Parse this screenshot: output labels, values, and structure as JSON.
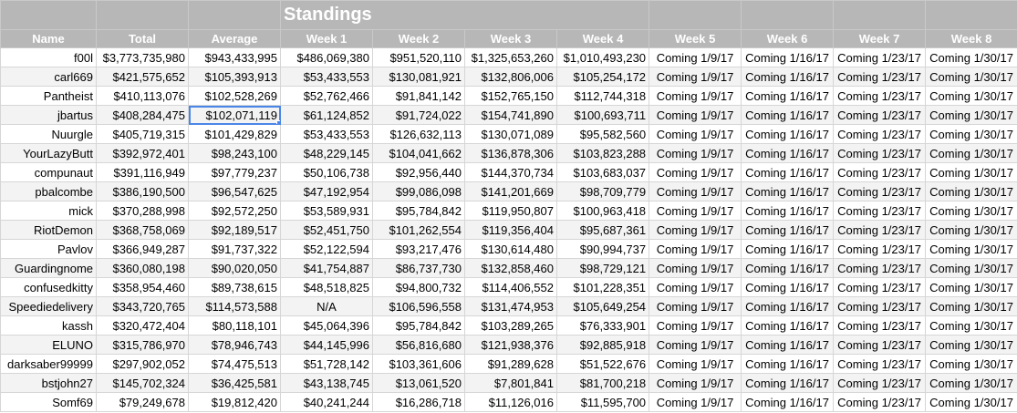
{
  "sheet": {
    "title": "Standings",
    "columns": [
      "Name",
      "Total",
      "Average",
      "Week 1",
      "Week 2",
      "Week 3",
      "Week 4",
      "Week 5",
      "Week 6",
      "Week 7",
      "Week 8"
    ],
    "selected_cell": {
      "row": 3,
      "column": "Average"
    },
    "colors": {
      "header_bg": "#b7b7b7",
      "header_text": "#ffffff",
      "selection": "#4a86e8",
      "stripe": "#f3f3f3"
    },
    "rows": [
      [
        "f00l",
        "$3,773,735,980",
        "$943,433,995",
        "$486,069,380",
        "$951,520,110",
        "$1,325,653,260",
        "$1,010,493,230",
        "Coming 1/9/17",
        "Coming 1/16/17",
        "Coming 1/23/17",
        "Coming 1/30/17"
      ],
      [
        "carl669",
        "$421,575,652",
        "$105,393,913",
        "$53,433,553",
        "$130,081,921",
        "$132,806,006",
        "$105,254,172",
        "Coming 1/9/17",
        "Coming 1/16/17",
        "Coming 1/23/17",
        "Coming 1/30/17"
      ],
      [
        "Pantheist",
        "$410,113,076",
        "$102,528,269",
        "$52,762,466",
        "$91,841,142",
        "$152,765,150",
        "$112,744,318",
        "Coming 1/9/17",
        "Coming 1/16/17",
        "Coming 1/23/17",
        "Coming 1/30/17"
      ],
      [
        "jbartus",
        "$408,284,475",
        "$102,071,119",
        "$61,124,852",
        "$91,724,022",
        "$154,741,890",
        "$100,693,711",
        "Coming 1/9/17",
        "Coming 1/16/17",
        "Coming 1/23/17",
        "Coming 1/30/17"
      ],
      [
        "Nuurgle",
        "$405,719,315",
        "$101,429,829",
        "$53,433,553",
        "$126,632,113",
        "$130,071,089",
        "$95,582,560",
        "Coming 1/9/17",
        "Coming 1/16/17",
        "Coming 1/23/17",
        "Coming 1/30/17"
      ],
      [
        "YourLazyButt",
        "$392,972,401",
        "$98,243,100",
        "$48,229,145",
        "$104,041,662",
        "$136,878,306",
        "$103,823,288",
        "Coming 1/9/17",
        "Coming 1/16/17",
        "Coming 1/23/17",
        "Coming 1/30/17"
      ],
      [
        "compunaut",
        "$391,116,949",
        "$97,779,237",
        "$50,106,738",
        "$92,956,440",
        "$144,370,734",
        "$103,683,037",
        "Coming 1/9/17",
        "Coming 1/16/17",
        "Coming 1/23/17",
        "Coming 1/30/17"
      ],
      [
        "pbalcombe",
        "$386,190,500",
        "$96,547,625",
        "$47,192,954",
        "$99,086,098",
        "$141,201,669",
        "$98,709,779",
        "Coming 1/9/17",
        "Coming 1/16/17",
        "Coming 1/23/17",
        "Coming 1/30/17"
      ],
      [
        "mick",
        "$370,288,998",
        "$92,572,250",
        "$53,589,931",
        "$95,784,842",
        "$119,950,807",
        "$100,963,418",
        "Coming 1/9/17",
        "Coming 1/16/17",
        "Coming 1/23/17",
        "Coming 1/30/17"
      ],
      [
        "RiotDemon",
        "$368,758,069",
        "$92,189,517",
        "$52,451,750",
        "$101,262,554",
        "$119,356,404",
        "$95,687,361",
        "Coming 1/9/17",
        "Coming 1/16/17",
        "Coming 1/23/17",
        "Coming 1/30/17"
      ],
      [
        "Pavlov",
        "$366,949,287",
        "$91,737,322",
        "$52,122,594",
        "$93,217,476",
        "$130,614,480",
        "$90,994,737",
        "Coming 1/9/17",
        "Coming 1/16/17",
        "Coming 1/23/17",
        "Coming 1/30/17"
      ],
      [
        "Guardingnome",
        "$360,080,198",
        "$90,020,050",
        "$41,754,887",
        "$86,737,730",
        "$132,858,460",
        "$98,729,121",
        "Coming 1/9/17",
        "Coming 1/16/17",
        "Coming 1/23/17",
        "Coming 1/30/17"
      ],
      [
        "confusedkitty",
        "$358,954,460",
        "$89,738,615",
        "$48,518,825",
        "$94,800,732",
        "$114,406,552",
        "$101,228,351",
        "Coming 1/9/17",
        "Coming 1/16/17",
        "Coming 1/23/17",
        "Coming 1/30/17"
      ],
      [
        "Speediedelivery",
        "$343,720,765",
        "$114,573,588",
        "N/A",
        "$106,596,558",
        "$131,474,953",
        "$105,649,254",
        "Coming 1/9/17",
        "Coming 1/16/17",
        "Coming 1/23/17",
        "Coming 1/30/17"
      ],
      [
        "kassh",
        "$320,472,404",
        "$80,118,101",
        "$45,064,396",
        "$95,784,842",
        "$103,289,265",
        "$76,333,901",
        "Coming 1/9/17",
        "Coming 1/16/17",
        "Coming 1/23/17",
        "Coming 1/30/17"
      ],
      [
        "ELUNO",
        "$315,786,970",
        "$78,946,743",
        "$44,145,996",
        "$56,816,680",
        "$121,938,376",
        "$92,885,918",
        "Coming 1/9/17",
        "Coming 1/16/17",
        "Coming 1/23/17",
        "Coming 1/30/17"
      ],
      [
        "darksaber99999",
        "$297,902,052",
        "$74,475,513",
        "$51,728,142",
        "$103,361,606",
        "$91,289,628",
        "$51,522,676",
        "Coming 1/9/17",
        "Coming 1/16/17",
        "Coming 1/23/17",
        "Coming 1/30/17"
      ],
      [
        "bstjohn27",
        "$145,702,324",
        "$36,425,581",
        "$43,138,745",
        "$13,061,520",
        "$7,801,841",
        "$81,700,218",
        "Coming 1/9/17",
        "Coming 1/16/17",
        "Coming 1/23/17",
        "Coming 1/30/17"
      ],
      [
        "Somf69",
        "$79,249,678",
        "$19,812,420",
        "$40,241,244",
        "$16,286,718",
        "$11,126,016",
        "$11,595,700",
        "Coming 1/9/17",
        "Coming 1/16/17",
        "Coming 1/23/17",
        "Coming 1/30/17"
      ]
    ]
  }
}
